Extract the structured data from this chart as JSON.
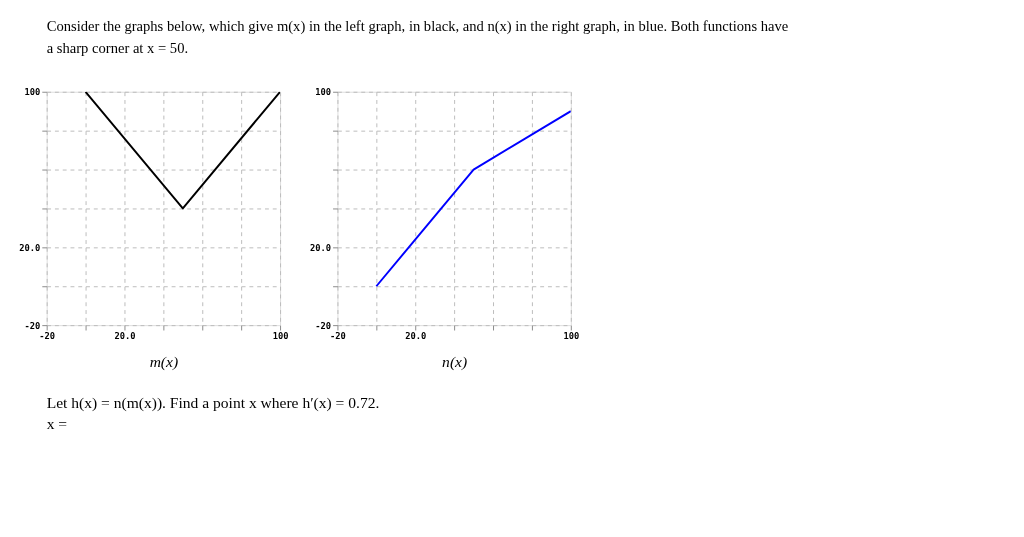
{
  "chart_data": [
    {
      "type": "line",
      "xlabel": "m(x)",
      "x": [
        0,
        50,
        100
      ],
      "series": [
        {
          "color": "#000000",
          "values": [
            100,
            40,
            100
          ]
        }
      ],
      "xlim": [
        -20,
        100
      ],
      "ylim": [
        -20,
        100
      ],
      "xticks": [
        -20,
        {
          "value": 0,
          "label": null
        },
        {
          "value": 20,
          "label": "20.0"
        },
        {
          "value": 40,
          "label": null
        },
        {
          "value": 60,
          "label": null
        },
        {
          "value": 80,
          "label": null
        },
        100
      ],
      "yticks": [
        -20,
        {
          "value": 0,
          "label": null
        },
        {
          "value": 20,
          "label": "20.0"
        },
        {
          "value": 40,
          "label": null
        },
        {
          "value": 60,
          "label": null
        },
        {
          "value": 80,
          "label": null
        },
        100
      ],
      "grid": true,
      "legend": false,
      "annotations": [
        "Consider the graphs below, which give m(x) in the left graph, in black, and n(x) in the right graph, in blue. Both functions have a sharp corner at x = 50."
      ]
    },
    {
      "type": "line",
      "xlabel": "n(x)",
      "x": [
        0,
        50,
        100
      ],
      "series": [
        {
          "color": "#0000ff",
          "values": [
            0,
            60,
            90
          ]
        }
      ],
      "xlim": [
        -20,
        100
      ],
      "ylim": [
        -20,
        100
      ],
      "xticks": [
        -20,
        {
          "value": 0,
          "label": null
        },
        {
          "value": 20,
          "label": "20.0"
        },
        {
          "value": 40,
          "label": null
        },
        {
          "value": 60,
          "label": null
        },
        {
          "value": 80,
          "label": null
        },
        100
      ],
      "yticks": [
        -20,
        {
          "value": 0,
          "label": null
        },
        {
          "value": 20,
          "label": "20.0"
        },
        {
          "value": 40,
          "label": null
        },
        {
          "value": 60,
          "label": null
        },
        {
          "value": 80,
          "label": null
        },
        100
      ],
      "grid": true,
      "legend": false,
      "annotations": [
        "Let h(x) = n(m(x)). Find a point x where h′(x) = 0.72.",
        "x ="
      ]
    }
  ]
}
